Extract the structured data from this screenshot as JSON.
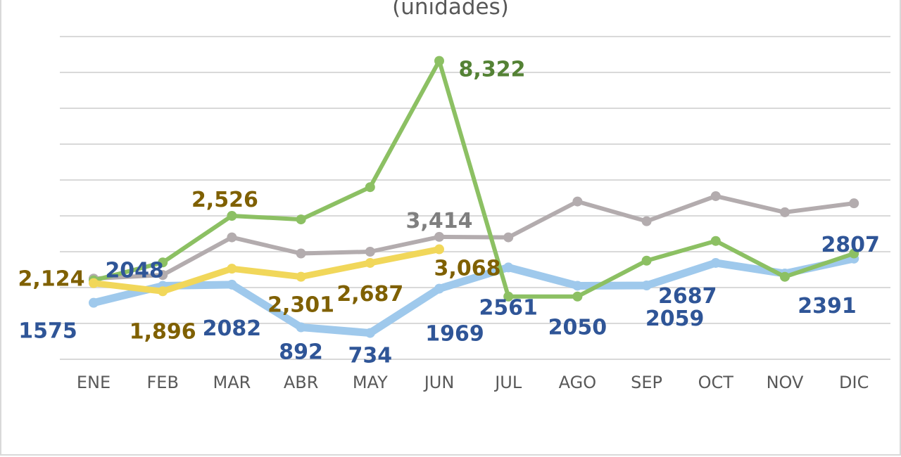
{
  "chart_data": {
    "type": "line",
    "title": "(unidades)",
    "categories": [
      "ENE",
      "FEB",
      "MAR",
      "ABR",
      "MAY",
      "JUN",
      "JUL",
      "AGO",
      "SEP",
      "OCT",
      "NOV",
      "DIC"
    ],
    "ylim": [
      0,
      9000
    ],
    "grid": true,
    "y_ticks_visible": false,
    "legend": "none",
    "series": [
      {
        "color": "#9fc9ec",
        "label_color": "#2f5597",
        "values": [
          1575,
          2048,
          2082,
          892,
          734,
          1969,
          2561,
          2050,
          2059,
          2687,
          2391,
          2807
        ],
        "labels": [
          "1575",
          "2048",
          "2082",
          "892",
          "734",
          "1969",
          "2561",
          "2050",
          "2059",
          "2687",
          "2391",
          "2807"
        ]
      },
      {
        "color": "#8cc063",
        "label_color": "#548235",
        "values": [
          2200,
          2700,
          4000,
          3900,
          4800,
          8322,
          1750,
          1750,
          2750,
          3300,
          2300,
          2950
        ],
        "labels": [
          "",
          "",
          "",
          "",
          "",
          "8,322",
          "",
          "",
          "",
          "",
          "",
          ""
        ]
      },
      {
        "color": "#b3acae",
        "label_color": "#7f7f7f",
        "values": [
          2250,
          2350,
          3400,
          2950,
          3000,
          3414,
          3400,
          4400,
          3850,
          4550,
          4100,
          4350
        ],
        "labels": [
          "",
          "",
          "",
          "",
          "",
          "3,414",
          "",
          "",
          "",
          "",
          "",
          ""
        ]
      },
      {
        "color": "#f1d75a",
        "label_color": "#7f6000",
        "values": [
          2124,
          1896,
          2526,
          2301,
          2687,
          3068,
          null,
          null,
          null,
          null,
          null,
          null
        ],
        "labels": [
          "2,124",
          "1,896",
          "2,526",
          "2,301",
          "2,687",
          "3,068",
          "",
          "",
          "",
          "",
          "",
          ""
        ]
      }
    ]
  }
}
